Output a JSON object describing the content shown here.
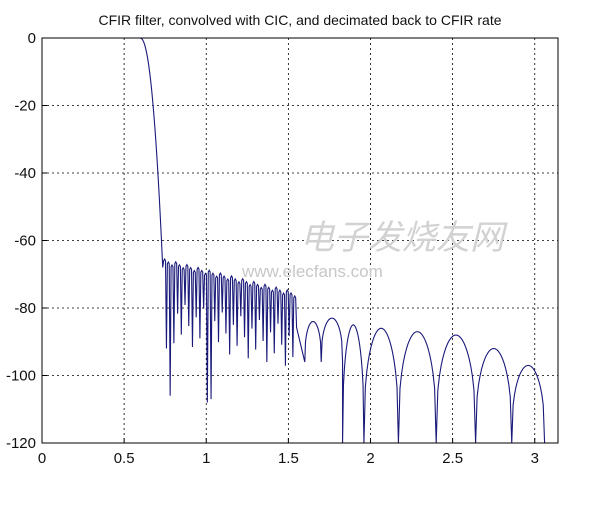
{
  "chart_data": {
    "type": "line",
    "title": "CFIR filter, convolved with CIC, and decimated back to CFIR rate",
    "xlabel": "",
    "ylabel": "",
    "xlim": [
      0,
      3.1416
    ],
    "ylim": [
      -120,
      0
    ],
    "xticks": [
      "0",
      "0.5",
      "1",
      "1.5",
      "2",
      "2.5",
      "3"
    ],
    "yticks": [
      "0",
      "-20",
      "-40",
      "-60",
      "-80",
      "-100",
      "-120"
    ],
    "grid": true,
    "line_color": "#1a1a7a",
    "series": [
      {
        "name": "",
        "passband_edge": 0.6,
        "transition_end": 0.735,
        "stopband_mid_ripple_level": -66,
        "stopband_mid_end": 1.55,
        "stopband_far_peaks": [
          {
            "x": 1.65,
            "y": -84
          },
          {
            "x": 1.75,
            "y": -83
          },
          {
            "x": 1.88,
            "y": -85
          },
          {
            "x": 2.06,
            "y": -86
          },
          {
            "x": 2.28,
            "y": -87
          },
          {
            "x": 2.52,
            "y": -88
          },
          {
            "x": 2.76,
            "y": -92
          },
          {
            "x": 2.97,
            "y": -97
          }
        ],
        "stopband_nulls": [
          {
            "x": 0.74,
            "y": -92
          },
          {
            "x": 0.76,
            "y": -106
          },
          {
            "x": 0.99,
            "y": -108
          },
          {
            "x": 1.01,
            "y": -107
          },
          {
            "x": 1.83,
            "y": -120
          },
          {
            "x": 1.96,
            "y": -120
          },
          {
            "x": 2.17,
            "y": -120
          },
          {
            "x": 2.4,
            "y": -120
          },
          {
            "x": 2.64,
            "y": -120
          },
          {
            "x": 2.86,
            "y": -120
          },
          {
            "x": 3.06,
            "y": -120
          }
        ]
      }
    ]
  },
  "watermark": {
    "text_latin": "www.elecfans.com",
    "text_cn": "电子发烧友网"
  }
}
